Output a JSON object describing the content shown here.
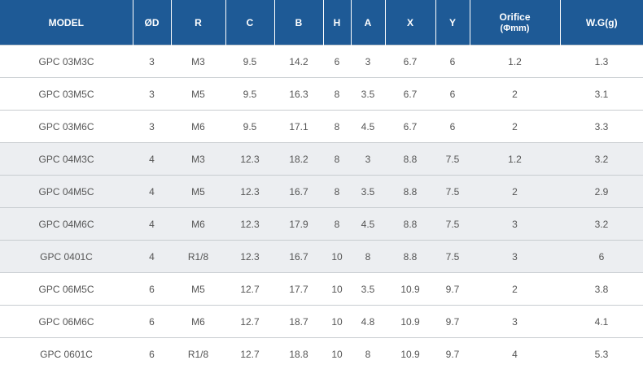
{
  "table": {
    "headers": [
      {
        "label": "MODEL"
      },
      {
        "label": "ØD"
      },
      {
        "label": "R"
      },
      {
        "label": "C"
      },
      {
        "label": "B"
      },
      {
        "label": "H"
      },
      {
        "label": "A"
      },
      {
        "label": "X"
      },
      {
        "label": "Y"
      },
      {
        "label": "Orifice",
        "sub": "(Φmm)"
      },
      {
        "label": "W.G(g)"
      }
    ],
    "rows": [
      [
        "GPC 03M3C",
        "3",
        "M3",
        "9.5",
        "14.2",
        "6",
        "3",
        "6.7",
        "6",
        "1.2",
        "1.3"
      ],
      [
        "GPC 03M5C",
        "3",
        "M5",
        "9.5",
        "16.3",
        "8",
        "3.5",
        "6.7",
        "6",
        "2",
        "3.1"
      ],
      [
        "GPC 03M6C",
        "3",
        "M6",
        "9.5",
        "17.1",
        "8",
        "4.5",
        "6.7",
        "6",
        "2",
        "3.3"
      ],
      [
        "GPC 04M3C",
        "4",
        "M3",
        "12.3",
        "18.2",
        "8",
        "3",
        "8.8",
        "7.5",
        "1.2",
        "3.2"
      ],
      [
        "GPC 04M5C",
        "4",
        "M5",
        "12.3",
        "16.7",
        "8",
        "3.5",
        "8.8",
        "7.5",
        "2",
        "2.9"
      ],
      [
        "GPC 04M6C",
        "4",
        "M6",
        "12.3",
        "17.9",
        "8",
        "4.5",
        "8.8",
        "7.5",
        "3",
        "3.2"
      ],
      [
        "GPC 0401C",
        "4",
        "R1/8",
        "12.3",
        "16.7",
        "10",
        "8",
        "8.8",
        "7.5",
        "3",
        "6"
      ],
      [
        "GPC 06M5C",
        "6",
        "M5",
        "12.7",
        "17.7",
        "10",
        "3.5",
        "10.9",
        "9.7",
        "2",
        "3.8"
      ],
      [
        "GPC 06M6C",
        "6",
        "M6",
        "12.7",
        "18.7",
        "10",
        "4.8",
        "10.9",
        "9.7",
        "3",
        "4.1"
      ],
      [
        "GPC 0601C",
        "6",
        "R1/8",
        "12.7",
        "18.8",
        "10",
        "8",
        "10.9",
        "9.7",
        "4",
        "5.3"
      ]
    ],
    "header_color": "#1e5a96",
    "shade_color": "#eceef1"
  }
}
